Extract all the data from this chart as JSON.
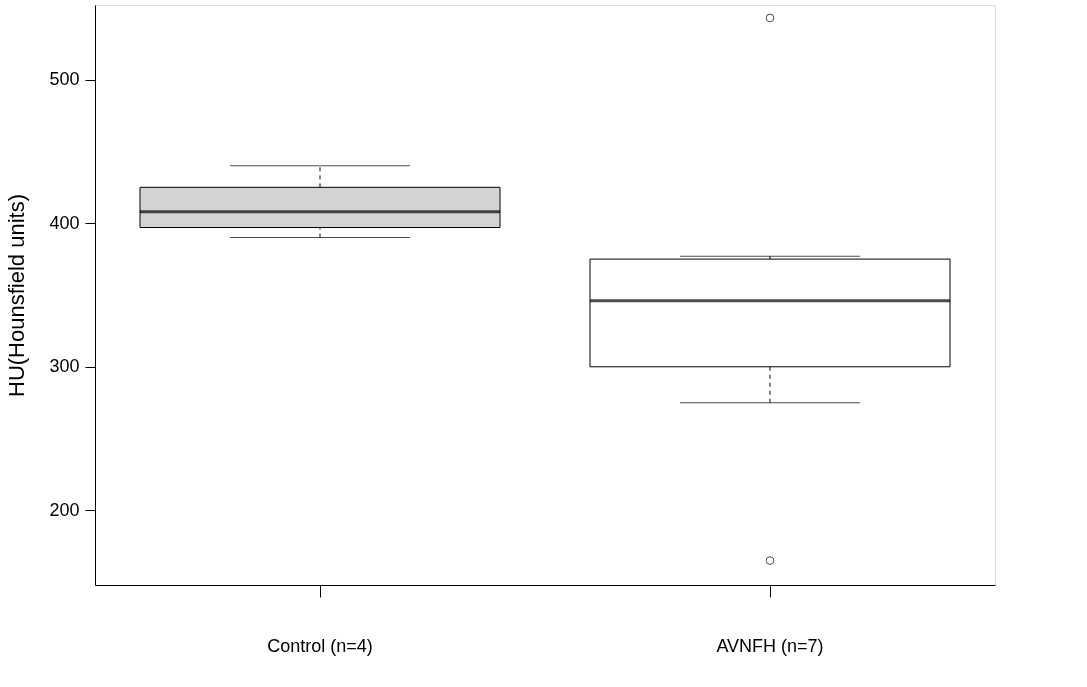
{
  "chart_data": {
    "type": "box",
    "ylabel": "HU(Hounsfield units)",
    "categories": [
      "Control (n=4)",
      "AVNFH (n=7)"
    ],
    "colors": [
      "#d3d3d3",
      "#ffffff"
    ],
    "boxes": [
      {
        "low": 390,
        "q1": 397,
        "median": 408,
        "q3": 425,
        "high": 440
      },
      {
        "low": 275,
        "q1": 300,
        "median": 346,
        "q3": 375,
        "high": 377,
        "outliers": [
          543,
          165
        ]
      }
    ],
    "ylim": [
      148,
      552
    ],
    "yticks": [
      200,
      300,
      400,
      500
    ],
    "grid": false
  }
}
